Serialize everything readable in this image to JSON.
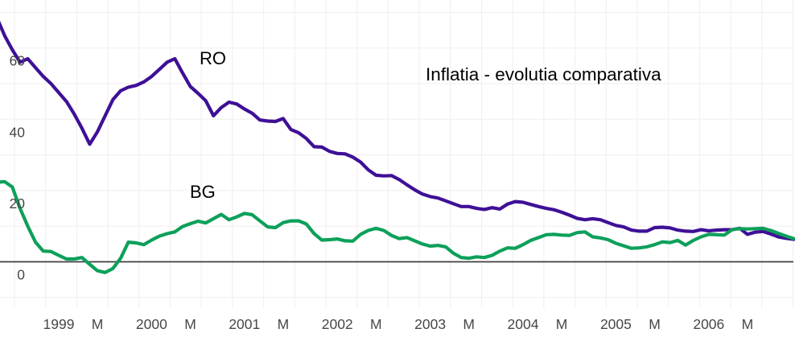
{
  "title": "Inflatia - evolutia comparativa",
  "series_labels": {
    "ro": "RO",
    "bg": "BG"
  },
  "colors": {
    "ro_line": "#3e1096",
    "bg_line": "#0da05a",
    "grid_line": "#f5eff0",
    "zero_line": "#3f3f3f",
    "tick_text": "#474747",
    "title_text": "#000000",
    "background": "#ffffff"
  },
  "chart_data": {
    "type": "line",
    "title": "Inflatia - evolutia comparativa",
    "xlabel": "",
    "ylabel": "",
    "x_unit": "month",
    "x_start_month": "1998-05",
    "x_end_month": "2006-12",
    "grid": true,
    "legend_position": "inline-labels",
    "ylim": [
      -12,
      72
    ],
    "y_gridline_step": 10,
    "y_tick_labels": [
      {
        "value": 0,
        "label": "0"
      },
      {
        "value": 20,
        "label": "20"
      },
      {
        "value": 40,
        "label": "40"
      },
      {
        "value": 60,
        "label": "60"
      }
    ],
    "x_tick_labels": [
      {
        "index": 8,
        "label": "1999"
      },
      {
        "index": 13,
        "label": "M"
      },
      {
        "index": 20,
        "label": "2000"
      },
      {
        "index": 25,
        "label": "M"
      },
      {
        "index": 32,
        "label": "2001"
      },
      {
        "index": 37,
        "label": "M"
      },
      {
        "index": 44,
        "label": "2002"
      },
      {
        "index": 49,
        "label": "M"
      },
      {
        "index": 56,
        "label": "2003"
      },
      {
        "index": 61,
        "label": "M"
      },
      {
        "index": 68,
        "label": "2004"
      },
      {
        "index": 73,
        "label": "M"
      },
      {
        "index": 80,
        "label": "2005"
      },
      {
        "index": 85,
        "label": "M"
      },
      {
        "index": 92,
        "label": "2006"
      },
      {
        "index": 97,
        "label": "M"
      }
    ],
    "series": [
      {
        "name": "RO",
        "color": "#3e1096",
        "values": [
          68.5,
          63.5,
          59.5,
          56,
          57,
          54.5,
          52,
          50,
          47.5,
          45,
          41.5,
          37.5,
          33,
          36.5,
          41,
          45.5,
          48,
          49,
          49.5,
          50.5,
          52,
          54,
          56,
          57,
          53,
          49.2,
          47.3,
          45.2,
          41,
          43.3,
          44.8,
          44.3,
          42.9,
          41.7,
          39.8,
          39.5,
          39.4,
          40.2,
          37.1,
          36.2,
          34.6,
          32.3,
          32.2,
          31,
          30.4,
          30.3,
          29.4,
          28,
          25.8,
          24.3,
          24.1,
          24.2,
          23.1,
          21.6,
          20.2,
          19,
          18.3,
          17.9,
          17.1,
          16.3,
          15.5,
          15.5,
          15,
          14.7,
          15.2,
          14.8,
          16.2,
          16.9,
          16.7,
          16.1,
          15.5,
          15,
          14.6,
          13.9,
          13.1,
          12.2,
          11.8,
          12.1,
          11.8,
          11,
          10.2,
          9.8,
          8.9,
          8.6,
          8.6,
          9.6,
          9.7,
          9.5,
          8.9,
          8.6,
          8.5,
          9,
          8.7,
          8.9,
          9,
          9,
          9.4,
          7.7,
          8.3,
          8.5,
          7.8,
          7,
          6.6,
          6.3
        ]
      },
      {
        "name": "BG",
        "color": "#0da05a",
        "values": [
          22.3,
          22.5,
          21,
          15,
          10,
          5.5,
          3,
          2.9,
          1.8,
          0.8,
          0.8,
          1.2,
          -0.7,
          -2.5,
          -3,
          -1.9,
          1,
          5.5,
          5.3,
          4.8,
          6.1,
          7.2,
          7.9,
          8.4,
          9.9,
          10.7,
          11.4,
          10.9,
          12.1,
          13.3,
          11.8,
          12.6,
          13.6,
          13.2,
          11.5,
          9.8,
          9.6,
          11,
          11.5,
          11.5,
          10.6,
          7.9,
          6.1,
          6.2,
          6.4,
          5.9,
          5.8,
          7.7,
          8.8,
          9.4,
          8.8,
          7.4,
          6.5,
          6.8,
          5.9,
          5,
          4.4,
          4.6,
          4.2,
          2.4,
          1.2,
          1,
          1.4,
          1.2,
          1.8,
          3,
          3.9,
          3.8,
          4.8,
          6,
          6.8,
          7.6,
          7.7,
          7.5,
          7.4,
          8.2,
          8.4,
          7,
          6.7,
          6.2,
          5.2,
          4.5,
          3.8,
          3.9,
          4.2,
          4.8,
          5.6,
          5.4,
          6,
          4.7,
          6,
          7,
          7.7,
          7.6,
          7.5,
          9,
          9.3,
          9.2,
          9.3,
          9.4,
          8.8,
          8,
          7.2,
          6.5
        ]
      }
    ]
  }
}
